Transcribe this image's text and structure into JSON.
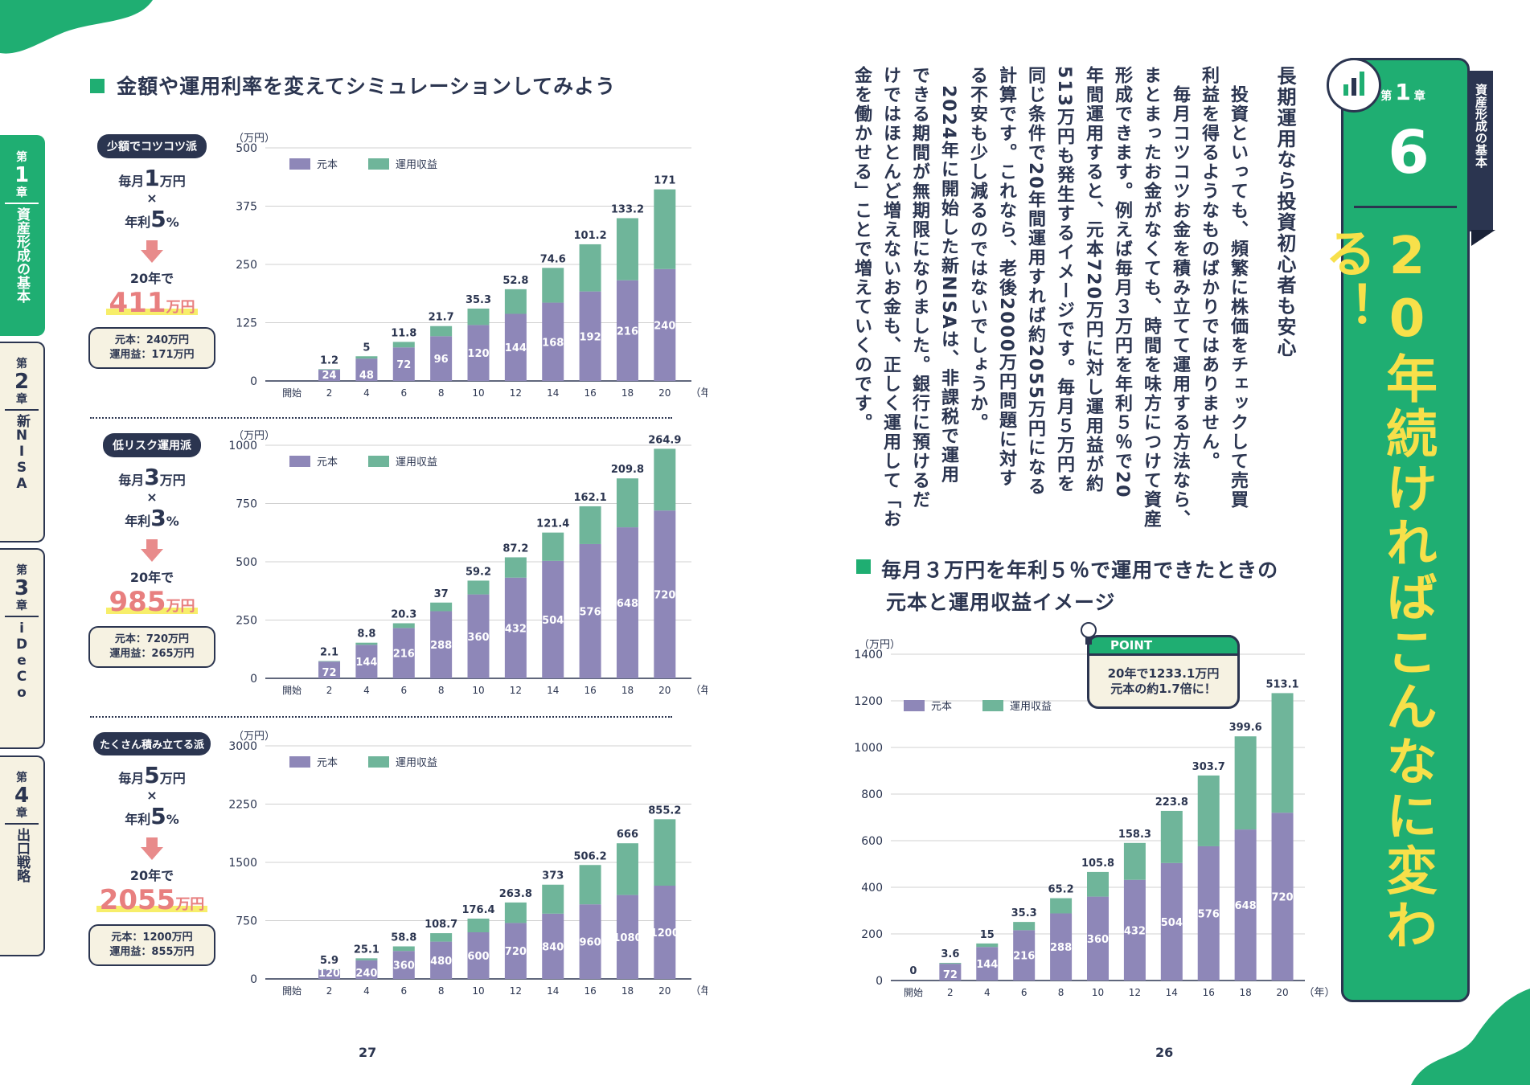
{
  "colors": {
    "green": "#1fae72",
    "navy": "#2b3550",
    "purple": "#8e87b8",
    "teal": "#6fb59a",
    "yellow": "#f7e04a",
    "cream": "#f6f2e2",
    "pink": "#e87f7f"
  },
  "left_page": {
    "page_number": "27",
    "section_title": "金額や運用利率を変えてシミュレーションしてみよう",
    "scenarios": [
      {
        "tag": "少額でコツコツ派",
        "monthly_pre": "毎月",
        "monthly_num": "1",
        "monthly_unit": "万円",
        "times": "×",
        "rate_pre": "年利",
        "rate_num": "5",
        "rate_unit": "%",
        "years": "20年で",
        "result": "411",
        "result_unit": "万円",
        "principal_line": "元本：240万円",
        "gain_line": "運用益：171万円"
      },
      {
        "tag": "低リスク運用派",
        "monthly_pre": "毎月",
        "monthly_num": "3",
        "monthly_unit": "万円",
        "times": "×",
        "rate_pre": "年利",
        "rate_num": "3",
        "rate_unit": "%",
        "years": "20年で",
        "result": "985",
        "result_unit": "万円",
        "principal_line": "元本：720万円",
        "gain_line": "運用益：265万円"
      },
      {
        "tag": "たくさん積み立てる派",
        "monthly_pre": "毎月",
        "monthly_num": "5",
        "monthly_unit": "万円",
        "times": "×",
        "rate_pre": "年利",
        "rate_num": "5",
        "rate_unit": "%",
        "years": "20年で",
        "result": "2055",
        "result_unit": "万円",
        "principal_line": "元本：1200万円",
        "gain_line": "運用益：855万円"
      }
    ]
  },
  "side_tabs": [
    {
      "top": "第",
      "num": "1",
      "bottom": "章",
      "label": "資産形成の基本"
    },
    {
      "top": "第",
      "num": "2",
      "bottom": "章",
      "label": "新NISA"
    },
    {
      "top": "第",
      "num": "3",
      "bottom": "章",
      "label": "iDeCo"
    },
    {
      "top": "第",
      "num": "4",
      "bottom": "章",
      "label": "出口戦略"
    }
  ],
  "right_page": {
    "page_number": "26",
    "chapter_badge": {
      "pre": "第",
      "num": "1",
      "post": "章"
    },
    "chapter_label": "資産形成の基本",
    "section_number": "6",
    "big_title": "20年続ければこんなに変わる！",
    "heading": "長期運用なら投資初心者も安心",
    "body_columns": [
      "　投資といっても、頻繁に株価をチェックして売買",
      "利益を得るようなものばかりではありません。",
      "　毎月コツコツお金を積み立てて運用する方法なら、",
      "まとまったお金がなくても、時間を味方につけて資産",
      "形成できます。例えば毎月３万円を年利５％で20",
      "年間運用すると、元本720万円に対し運用益が約",
      "513万円も発生するイメージです。毎月５万円を",
      "同じ条件で20年間運用すれば約2055万円になる",
      "計算です。これなら、老後2000万円問題に対す",
      "る不安も少し減るのではないでしょうか。",
      "　2024年に開始した新NISAは、非課税で運用",
      "できる期間が無期限になりました。銀行に預けるだ",
      "けではほとんど増えないお金も、正しく運用して「お",
      "金を働かせる」ことで増えていくのです。"
    ],
    "chart_title_line1": "毎月３万円を年利５％で運用できたときの",
    "chart_title_line2": "元本と運用収益イメージ",
    "point_label": "POINT",
    "point_line1": "20年で1233.1万円",
    "point_line2": "元本の約1.7倍に！"
  },
  "chart_data": [
    {
      "type": "bar",
      "stacked": true,
      "unit": "（万円）",
      "xunit": "（年）",
      "categories": [
        "開始",
        "2",
        "4",
        "6",
        "8",
        "10",
        "12",
        "14",
        "16",
        "18",
        "20"
      ],
      "ylim": [
        0,
        500
      ],
      "yticks": [
        0,
        125,
        250,
        375,
        500
      ],
      "legend": [
        "元本",
        "運用収益"
      ],
      "series": [
        {
          "name": "元本",
          "values": [
            0,
            24,
            48,
            72,
            96,
            120,
            144,
            168,
            192,
            216,
            240
          ]
        },
        {
          "name": "運用収益",
          "values": [
            0,
            1.2,
            5,
            11.8,
            21.7,
            35.3,
            52.8,
            74.6,
            101.2,
            133.2,
            171
          ]
        }
      ]
    },
    {
      "type": "bar",
      "stacked": true,
      "unit": "（万円）",
      "xunit": "（年）",
      "categories": [
        "開始",
        "2",
        "4",
        "6",
        "8",
        "10",
        "12",
        "14",
        "16",
        "18",
        "20"
      ],
      "ylim": [
        0,
        1000
      ],
      "yticks": [
        0,
        250,
        500,
        750,
        1000
      ],
      "legend": [
        "元本",
        "運用収益"
      ],
      "series": [
        {
          "name": "元本",
          "values": [
            0,
            72,
            144,
            216,
            288,
            360,
            432,
            504,
            576,
            648,
            720
          ]
        },
        {
          "name": "運用収益",
          "values": [
            0,
            2.1,
            8.8,
            20.3,
            37,
            59.2,
            87.2,
            121.4,
            162.1,
            209.8,
            264.9
          ]
        }
      ]
    },
    {
      "type": "bar",
      "stacked": true,
      "unit": "（万円）",
      "xunit": "（年）",
      "categories": [
        "開始",
        "2",
        "4",
        "6",
        "8",
        "10",
        "12",
        "14",
        "16",
        "18",
        "20"
      ],
      "ylim": [
        0,
        3000
      ],
      "yticks": [
        0,
        750,
        1500,
        2250,
        3000
      ],
      "legend": [
        "元本",
        "運用収益"
      ],
      "series": [
        {
          "name": "元本",
          "values": [
            0,
            120,
            240,
            360,
            480,
            600,
            720,
            840,
            960,
            1080,
            1200
          ]
        },
        {
          "name": "運用収益",
          "values": [
            0,
            5.9,
            25.1,
            58.8,
            108.7,
            176.4,
            263.8,
            373.0,
            506.2,
            666.0,
            855.2
          ]
        }
      ]
    },
    {
      "type": "bar",
      "stacked": true,
      "unit": "（万円）",
      "xunit": "（年）",
      "categories": [
        "開始",
        "2",
        "4",
        "6",
        "8",
        "10",
        "12",
        "14",
        "16",
        "18",
        "20"
      ],
      "ylim": [
        0,
        1400
      ],
      "yticks": [
        0,
        200,
        400,
        600,
        800,
        1000,
        1200,
        1400
      ],
      "legend": [
        "元本",
        "運用収益"
      ],
      "series": [
        {
          "name": "元本",
          "values": [
            0,
            72,
            144,
            216,
            288,
            360,
            432,
            504,
            576,
            648,
            720
          ]
        },
        {
          "name": "運用収益",
          "values": [
            0,
            3.6,
            15,
            35.3,
            65.2,
            105.8,
            158.3,
            223.8,
            303.7,
            399.6,
            513.1
          ]
        }
      ]
    }
  ]
}
